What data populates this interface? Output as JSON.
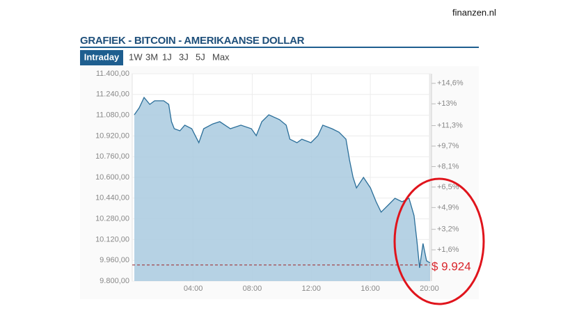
{
  "source": "finanzen.nl",
  "chart_data": {
    "type": "area",
    "title": "GRAFIEK - BITCOIN - AMERIKAANSE DOLLAR",
    "tabs": [
      "Intraday",
      "1W",
      "3M",
      "1J",
      "3J",
      "5J",
      "Max"
    ],
    "active_tab": 0,
    "x": [
      0.01,
      0.34,
      0.67,
      1.06,
      1.39,
      2.0,
      2.34,
      2.53,
      2.72,
      3.1,
      3.43,
      3.9,
      4.38,
      4.71,
      5.33,
      5.8,
      6.52,
      7.23,
      7.94,
      8.27,
      8.65,
      9.12,
      9.84,
      10.3,
      10.55,
      11.03,
      11.36,
      11.98,
      12.45,
      12.78,
      13.4,
      13.88,
      14.35,
      14.59,
      14.83,
      15.06,
      15.54,
      16.01,
      16.39,
      16.73,
      17.2,
      17.67,
      18.15,
      18.62,
      18.96,
      19.15,
      19.34,
      19.57,
      19.81,
      20.05
    ],
    "series": [
      {
        "name": "Bitcoin",
        "color": "#2a6e99",
        "values": [
          11083,
          11137,
          11217,
          11164,
          11191,
          11191,
          11164,
          11030,
          10976,
          10960,
          11003,
          10976,
          10868,
          10976,
          11013,
          11030,
          10976,
          11003,
          10976,
          10922,
          11030,
          11083,
          11046,
          11003,
          10895,
          10868,
          10895,
          10868,
          10922,
          11003,
          10976,
          10949,
          10895,
          10734,
          10600,
          10519,
          10600,
          10519,
          10412,
          10332,
          10385,
          10439,
          10412,
          10439,
          10305,
          10117,
          9902,
          10090,
          9956,
          9940
        ]
      }
    ],
    "fill_color": "#a9cadf",
    "xlim": [
      -0.13,
      20.05
    ],
    "xticks": [
      {
        "value": 4,
        "label": "04:00"
      },
      {
        "value": 8,
        "label": "08:00"
      },
      {
        "value": 12,
        "label": "12:00"
      },
      {
        "value": 16,
        "label": "16:00"
      },
      {
        "value": 20,
        "label": "20:00"
      }
    ],
    "ylim": [
      9800,
      11400
    ],
    "yticks": [
      {
        "value": 9800,
        "label": "9.800,00"
      },
      {
        "value": 9960,
        "label": "9.960,00"
      },
      {
        "value": 10120,
        "label": "10.120,00"
      },
      {
        "value": 10280,
        "label": "10.280,00"
      },
      {
        "value": 10440,
        "label": "10.440,00"
      },
      {
        "value": 10600,
        "label": "10.600,00"
      },
      {
        "value": 10760,
        "label": "10.760,00"
      },
      {
        "value": 10920,
        "label": "10.920,00"
      },
      {
        "value": 11080,
        "label": "11.080,00"
      },
      {
        "value": 11240,
        "label": "11.240,00"
      },
      {
        "value": 11400,
        "label": "11.400,00"
      }
    ],
    "y2lim": [
      -0.84,
      15.35
    ],
    "y2ticks": [
      {
        "value": 1.6,
        "label": "+1,6%"
      },
      {
        "value": 3.2,
        "label": "+3,2%"
      },
      {
        "value": 4.9,
        "label": "+4,9%"
      },
      {
        "value": 6.5,
        "label": "+6,5%"
      },
      {
        "value": 8.1,
        "label": "+8,1%"
      },
      {
        "value": 9.7,
        "label": "+9,7%"
      },
      {
        "value": 11.3,
        "label": "+11,3%"
      },
      {
        "value": 13,
        "label": "+13%"
      },
      {
        "value": 14.6,
        "label": "+14,6%"
      }
    ],
    "reference": {
      "value": 9924,
      "label": "$ 9.924",
      "color": "#d9262c"
    },
    "grid": true
  }
}
